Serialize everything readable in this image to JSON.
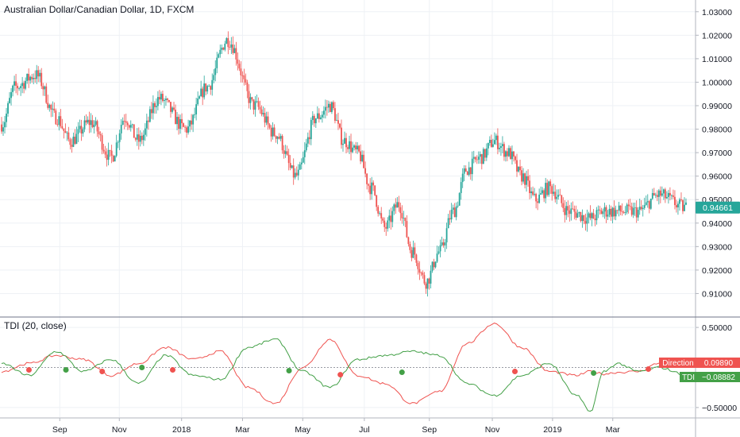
{
  "chart_data": [
    {
      "type": "candlestick",
      "title": "Australian Dollar/Canadian Dollar, 1D, FXCM",
      "ylim": [
        0.9,
        1.035
      ],
      "yticks": [
        "0.91000",
        "0.92000",
        "0.93000",
        "0.94000",
        "0.95000",
        "0.96000",
        "0.97000",
        "0.98000",
        "0.99000",
        "1.00000",
        "1.01000",
        "1.02000",
        "1.03000"
      ],
      "ytick_values": [
        0.91,
        0.92,
        0.93,
        0.94,
        0.95,
        0.96,
        0.97,
        0.98,
        0.99,
        1.0,
        1.01,
        1.02,
        1.03
      ],
      "last_price_label": "0.94661",
      "last_price": 0.94661,
      "colors": {
        "up": "#26a69a",
        "down": "#ef5350",
        "last_price_bg": "#26a69a"
      },
      "close_path_t": [
        0,
        0.02,
        0.05,
        0.08,
        0.1,
        0.13,
        0.16,
        0.18,
        0.2,
        0.23,
        0.27,
        0.3,
        0.33,
        0.37,
        0.4,
        0.43,
        0.46,
        0.48,
        0.5,
        0.52,
        0.54,
        0.56,
        0.58,
        0.6,
        0.62,
        0.64,
        0.66,
        0.68,
        0.7,
        0.72,
        0.74,
        0.76,
        0.78,
        0.8,
        0.83,
        0.86,
        0.88,
        0.9,
        0.93,
        0.96,
        1.0
      ],
      "close_path_v": [
        0.982,
        0.998,
        1.003,
        0.985,
        0.975,
        0.983,
        0.968,
        0.985,
        0.975,
        0.993,
        0.98,
        0.998,
        1.018,
        0.99,
        0.978,
        0.96,
        0.985,
        0.99,
        0.975,
        0.97,
        0.955,
        0.938,
        0.948,
        0.928,
        0.915,
        0.928,
        0.945,
        0.963,
        0.968,
        0.975,
        0.97,
        0.96,
        0.95,
        0.955,
        0.945,
        0.942,
        0.945,
        0.945,
        0.945,
        0.952,
        0.9466
      ]
    },
    {
      "type": "line",
      "title": "TDI (20, close)",
      "ylim": [
        -0.62,
        0.62
      ],
      "yticks": [
        "0.50000",
        "−0.50000"
      ],
      "ytick_values": [
        0.5,
        -0.5
      ],
      "series": [
        {
          "name": "Direction",
          "value_label": "0.09890",
          "color": "#ef5350",
          "t": [
            0,
            0.04,
            0.08,
            0.12,
            0.16,
            0.2,
            0.24,
            0.28,
            0.32,
            0.36,
            0.4,
            0.44,
            0.48,
            0.52,
            0.56,
            0.6,
            0.64,
            0.68,
            0.72,
            0.76,
            0.8,
            0.84,
            0.86,
            0.88,
            0.9,
            0.93,
            0.96,
            1.0
          ],
          "values": [
            -0.05,
            0.05,
            0.15,
            0.1,
            -0.1,
            0.05,
            0.25,
            0.1,
            0.2,
            -0.25,
            -0.45,
            0.0,
            0.35,
            -0.1,
            -0.2,
            -0.45,
            -0.3,
            0.3,
            0.55,
            0.25,
            -0.05,
            -0.1,
            -0.05,
            -0.08,
            -0.06,
            -0.05,
            0.05,
            0.0989
          ]
        },
        {
          "name": "TDI",
          "value_label": "−0.08882",
          "color": "#43a047",
          "t": [
            0,
            0.04,
            0.08,
            0.12,
            0.16,
            0.2,
            0.24,
            0.28,
            0.32,
            0.36,
            0.4,
            0.44,
            0.48,
            0.52,
            0.56,
            0.6,
            0.64,
            0.68,
            0.72,
            0.76,
            0.8,
            0.84,
            0.86,
            0.88,
            0.9,
            0.93,
            0.96,
            1.0
          ],
          "values": [
            0.05,
            -0.1,
            0.2,
            -0.05,
            0.1,
            -0.2,
            0.15,
            -0.1,
            -0.15,
            0.25,
            0.35,
            -0.05,
            -0.25,
            0.1,
            0.15,
            0.2,
            0.15,
            -0.2,
            -0.35,
            -0.1,
            0.05,
            -0.35,
            -0.55,
            -0.05,
            0.05,
            -0.05,
            0.0,
            -0.08882
          ]
        }
      ],
      "crossovers": [
        {
          "t": 0.04,
          "v": -0.03,
          "color": "#ef5350"
        },
        {
          "t": 0.094,
          "v": -0.03,
          "color": "#43a047"
        },
        {
          "t": 0.147,
          "v": -0.05,
          "color": "#ef5350"
        },
        {
          "t": 0.205,
          "v": 0.0,
          "color": "#43a047"
        },
        {
          "t": 0.25,
          "v": -0.03,
          "color": "#ef5350"
        },
        {
          "t": 0.42,
          "v": -0.04,
          "color": "#43a047"
        },
        {
          "t": 0.495,
          "v": -0.09,
          "color": "#ef5350"
        },
        {
          "t": 0.585,
          "v": -0.06,
          "color": "#43a047"
        },
        {
          "t": 0.75,
          "v": -0.05,
          "color": "#ef5350"
        },
        {
          "t": 0.865,
          "v": -0.07,
          "color": "#43a047"
        },
        {
          "t": 0.945,
          "v": -0.02,
          "color": "#ef5350"
        }
      ]
    }
  ],
  "xaxis": {
    "labels": [
      "Sep",
      "Nov",
      "2018",
      "Mar",
      "May",
      "Jul",
      "Sep",
      "Nov",
      "2019",
      "Mar"
    ],
    "label_t": [
      0.085,
      0.172,
      0.263,
      0.352,
      0.44,
      0.53,
      0.625,
      0.717,
      0.805,
      0.893
    ]
  }
}
